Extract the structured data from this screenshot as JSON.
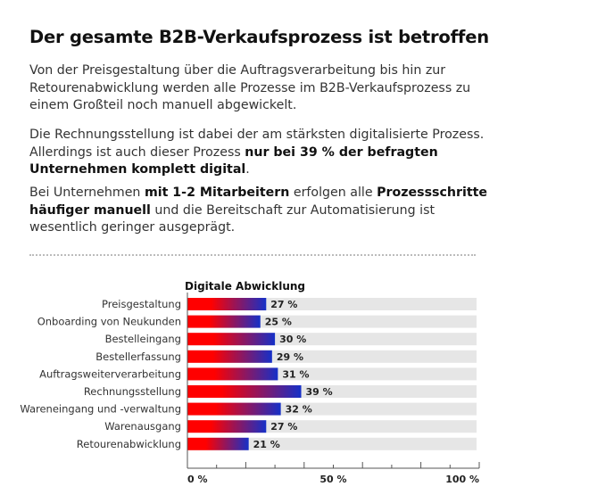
{
  "title": "Der gesamte B2B-Verkaufsprozess ist betroffen",
  "paragraphs": [
    [
      {
        "t": "Von der Preisgestaltung über die Auftragsverarbeitung bis hin zur Retourenabwicklung werden alle Prozesse im B2B-Verkaufsprozess zu einem Großteil noch manuell abgewickelt.",
        "b": false
      }
    ],
    [
      {
        "t": "Die Rechnungsstellung ist dabei der am stärksten digitalisierte Prozess. Allerdings ist auch dieser Prozess ",
        "b": false
      },
      {
        "t": "nur bei 39 % der befragten Unternehmen komplett digital",
        "b": true
      },
      {
        "t": ".",
        "b": false
      }
    ],
    [
      {
        "t": "Bei Unternehmen ",
        "b": false
      },
      {
        "t": "mit 1-2 Mitarbeitern",
        "b": true
      },
      {
        "t": " erfolgen alle ",
        "b": false
      },
      {
        "t": "Prozessschritte häufiger manuell",
        "b": true
      },
      {
        "t": " und die Bereitschaft zur Automatisierung ist wesentlich geringer ausgeprägt.",
        "b": false
      }
    ]
  ],
  "chart_data": {
    "type": "bar",
    "orientation": "horizontal",
    "title": "Digitale Abwicklung",
    "categories": [
      "Preisgestaltung",
      "Onboarding von Neukunden",
      "Bestelleingang",
      "Bestellerfassung",
      "Auftragsweiterverarbeitung",
      "Rechnungsstellung",
      "Wareneingang und -verwaltung",
      "Warenausgang",
      "Retourenabwicklung"
    ],
    "values": [
      27,
      25,
      30,
      29,
      31,
      39,
      32,
      27,
      21
    ],
    "value_labels": [
      "27 %",
      "25 %",
      "30 %",
      "29 %",
      "31 %",
      "39 %",
      "32 %",
      "27 %",
      "21 %"
    ],
    "xlim": [
      0,
      100
    ],
    "xticks": [
      "0 %",
      "50 %",
      "100 %"
    ],
    "colors": {
      "gradient_start": "#ff0000",
      "gradient_end": "#1530c8",
      "track": "#e6e6e6"
    }
  }
}
